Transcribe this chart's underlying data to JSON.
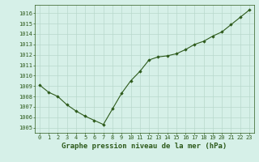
{
  "x": [
    0,
    1,
    2,
    3,
    4,
    5,
    6,
    7,
    8,
    9,
    10,
    11,
    12,
    13,
    14,
    15,
    16,
    17,
    18,
    19,
    20,
    21,
    22,
    23
  ],
  "y": [
    1009.1,
    1008.4,
    1008.0,
    1007.2,
    1006.6,
    1006.1,
    1005.7,
    1005.3,
    1006.8,
    1008.3,
    1009.5,
    1010.4,
    1011.5,
    1011.8,
    1011.9,
    1012.1,
    1012.5,
    1013.0,
    1013.3,
    1013.8,
    1014.2,
    1014.9,
    1015.6,
    1016.3
  ],
  "line_color": "#2d5a1b",
  "marker_color": "#2d5a1b",
  "bg_color": "#d6f0e8",
  "grid_color": "#b8d8cc",
  "title": "Graphe pression niveau de la mer (hPa)",
  "ylim": [
    1004.5,
    1016.8
  ],
  "yticks": [
    1005,
    1006,
    1007,
    1008,
    1009,
    1010,
    1011,
    1012,
    1013,
    1014,
    1015,
    1016
  ],
  "xticks": [
    0,
    1,
    2,
    3,
    4,
    5,
    6,
    7,
    8,
    9,
    10,
    11,
    12,
    13,
    14,
    15,
    16,
    17,
    18,
    19,
    20,
    21,
    22,
    23
  ],
  "title_color": "#2d5a1b",
  "tick_color": "#2d5a1b",
  "title_fontsize": 6.5,
  "tick_fontsize": 5.0
}
